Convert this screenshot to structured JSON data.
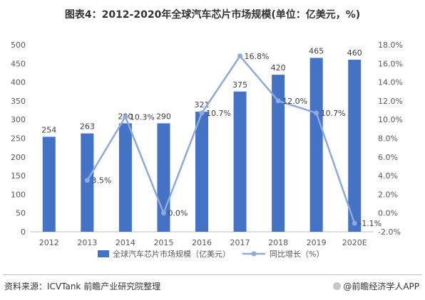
{
  "title": "图表4：2012-2020年全球汽车芯片市场规模(单位：亿美元，%)",
  "source": "资料来源：ICVTank 前瞻产业研究院整理",
  "brand": "@前瞻经济学人APP",
  "colors": {
    "bar": "#4472c4",
    "line": "#8ea9db",
    "axis": "#bfbfbf",
    "grid": "#d9d9d9",
    "text": "#595959"
  },
  "chart_data": {
    "type": "bar",
    "categories": [
      "2012",
      "2013",
      "2014",
      "2015",
      "2016",
      "2017",
      "2018",
      "2019",
      "2020E"
    ],
    "series": [
      {
        "name": "全球汽车芯片市场规模（亿美元）",
        "type": "bar",
        "axis": "left",
        "values": [
          254,
          263,
          290,
          290,
          321,
          375,
          420,
          465,
          460
        ],
        "labels": [
          "254",
          "263",
          "290",
          "290",
          "321",
          "375",
          "420",
          "465",
          "460"
        ]
      },
      {
        "name": "同比增长（%）",
        "type": "line",
        "axis": "right",
        "values": [
          null,
          3.5,
          10.3,
          0.0,
          10.7,
          16.8,
          12.0,
          10.7,
          -1.1
        ],
        "labels": [
          "",
          "3.5%",
          "10.3%",
          "0.0%",
          "10.7%",
          "16.8%",
          "12.0%",
          "10.7%",
          "-1.1%"
        ]
      }
    ],
    "ylim_left": [
      0,
      500
    ],
    "yticks_left": [
      "0",
      "50",
      "100",
      "150",
      "200",
      "250",
      "300",
      "350",
      "400",
      "450",
      "500"
    ],
    "ylim_right": [
      -2,
      18
    ],
    "yticks_right": [
      "-2.0%",
      "0.0%",
      "2.0%",
      "4.0%",
      "6.0%",
      "8.0%",
      "10.0%",
      "12.0%",
      "14.0%",
      "16.0%",
      "18.0%"
    ],
    "grid": false,
    "legend": "bottom"
  }
}
